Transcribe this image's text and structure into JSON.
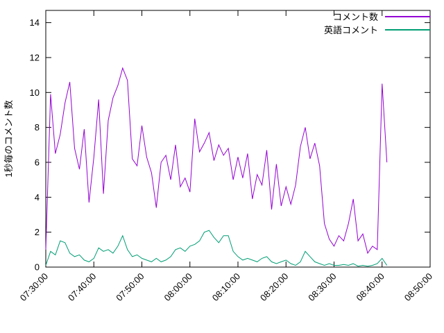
{
  "chart_data": {
    "type": "line",
    "title": "",
    "xlabel": "",
    "ylabel": "1秒毎のコメント数",
    "ylim": [
      0,
      14.7
    ],
    "yticks": [
      0,
      2,
      4,
      6,
      8,
      10,
      12,
      14
    ],
    "xticks": [
      "07:30:00",
      "07:40:00",
      "07:50:00",
      "08:00:00",
      "08:10:00",
      "08:20:00",
      "08:30:00",
      "08:40:00",
      "08:50:00"
    ],
    "x_range": [
      "07:30:00",
      "08:50:00"
    ],
    "grid": false,
    "legend_position": "top-right",
    "background_color": "#ffffff",
    "border_color": "#000000",
    "x": [
      "07:30",
      "07:31",
      "07:32",
      "07:33",
      "07:34",
      "07:35",
      "07:36",
      "07:37",
      "07:38",
      "07:39",
      "07:40",
      "07:41",
      "07:42",
      "07:43",
      "07:44",
      "07:45",
      "07:46",
      "07:47",
      "07:48",
      "07:49",
      "07:50",
      "07:51",
      "07:52",
      "07:53",
      "07:54",
      "07:55",
      "07:56",
      "07:57",
      "07:58",
      "07:59",
      "08:00",
      "08:01",
      "08:02",
      "08:03",
      "08:04",
      "08:05",
      "08:06",
      "08:07",
      "08:08",
      "08:09",
      "08:10",
      "08:11",
      "08:12",
      "08:13",
      "08:14",
      "08:15",
      "08:16",
      "08:17",
      "08:18",
      "08:19",
      "08:20",
      "08:21",
      "08:22",
      "08:23",
      "08:24",
      "08:25",
      "08:26",
      "08:27",
      "08:28",
      "08:29",
      "08:30",
      "08:31",
      "08:32",
      "08:33",
      "08:34",
      "08:35",
      "08:36",
      "08:37",
      "08:38",
      "08:39",
      "08:40",
      "08:41"
    ],
    "series": [
      {
        "name": "コメント数",
        "color": "#9400d3",
        "values": [
          1.0,
          9.9,
          6.5,
          7.6,
          9.4,
          10.6,
          6.8,
          5.6,
          7.9,
          3.7,
          6.3,
          9.6,
          4.2,
          8.4,
          9.7,
          10.4,
          11.4,
          10.7,
          6.2,
          5.8,
          8.1,
          6.3,
          5.4,
          3.4,
          6.0,
          6.4,
          5.0,
          7.0,
          4.6,
          5.1,
          4.3,
          8.5,
          6.6,
          7.1,
          7.7,
          6.1,
          7.0,
          6.4,
          6.8,
          5.0,
          6.3,
          5.1,
          6.5,
          3.9,
          5.3,
          4.7,
          6.7,
          3.3,
          5.9,
          3.5,
          4.6,
          3.6,
          4.7,
          6.9,
          8.0,
          6.2,
          7.1,
          5.8,
          2.5,
          1.6,
          1.2,
          1.8,
          1.5,
          2.5,
          3.9,
          1.5,
          1.9,
          0.8,
          1.2,
          1.0,
          10.5,
          6.0
        ]
      },
      {
        "name": "英語コメント",
        "color": "#009e73",
        "values": [
          0.1,
          0.9,
          0.7,
          1.5,
          1.4,
          0.8,
          0.6,
          0.7,
          0.4,
          0.3,
          0.5,
          1.1,
          0.9,
          1.0,
          0.8,
          1.2,
          1.8,
          1.0,
          0.6,
          0.7,
          0.5,
          0.4,
          0.3,
          0.5,
          0.3,
          0.4,
          0.6,
          1.0,
          1.1,
          0.9,
          1.2,
          1.3,
          1.5,
          2.0,
          2.1,
          1.7,
          1.4,
          1.8,
          1.8,
          0.9,
          0.6,
          0.4,
          0.5,
          0.4,
          0.3,
          0.5,
          0.6,
          0.3,
          0.2,
          0.3,
          0.4,
          0.2,
          0.1,
          0.3,
          0.9,
          0.6,
          0.3,
          0.2,
          0.1,
          0.2,
          0.1,
          0.1,
          0.15,
          0.1,
          0.2,
          0.05,
          0.1,
          0.05,
          0.1,
          0.2,
          0.5,
          0.1
        ]
      }
    ]
  }
}
